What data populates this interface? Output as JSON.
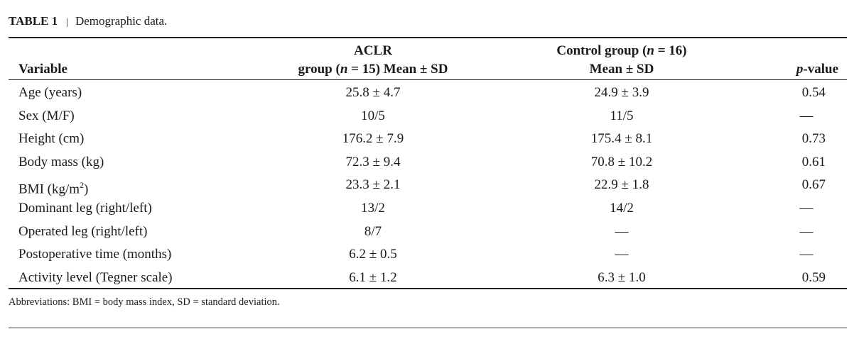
{
  "caption": {
    "label": "TABLE 1",
    "separator": "|",
    "title": "Demographic data."
  },
  "header": {
    "variable": "Variable",
    "aclr_line1": "ACLR",
    "aclr_line2_prefix": "group (",
    "aclr_n": "n",
    "aclr_line2_suffix": " = 15) Mean ± SD",
    "control_line1_prefix": "Control group (",
    "control_n": "n",
    "control_line1_suffix": " = 16)",
    "control_line2": "Mean ± SD",
    "p_italic": "p",
    "p_suffix": "-value"
  },
  "rows": [
    {
      "variable": "Age (years)",
      "aclr": "25.8 ± 4.7",
      "control": "24.9 ± 3.9",
      "p": "0.54"
    },
    {
      "variable": "Sex (M/F)",
      "aclr": "10/5",
      "control": "11/5",
      "p": "—"
    },
    {
      "variable": "Height (cm)",
      "aclr": "176.2 ± 7.9",
      "control": "175.4 ± 8.1",
      "p": "0.73"
    },
    {
      "variable": "Body mass (kg)",
      "aclr": "72.3 ± 9.4",
      "control": "70.8 ± 10.2",
      "p": "0.61"
    },
    {
      "variable_prefix": "BMI (kg/m",
      "variable_sup": "2",
      "variable_suffix": ")",
      "aclr": "23.3 ± 2.1",
      "control": "22.9 ± 1.8",
      "p": "0.67"
    },
    {
      "variable": "Dominant leg (right/left)",
      "aclr": "13/2",
      "control": "14/2",
      "p": "—"
    },
    {
      "variable": "Operated leg (right/left)",
      "aclr": "8/7",
      "control": "—",
      "p": "—"
    },
    {
      "variable": "Postoperative time (months)",
      "aclr": "6.2 ± 0.5",
      "control": "—",
      "p": "—"
    },
    {
      "variable": "Activity level (Tegner scale)",
      "aclr": "6.1 ± 1.2",
      "control": "6.3 ± 1.0",
      "p": "0.59"
    }
  ],
  "footnote": "Abbreviations: BMI = body mass index, SD = standard deviation."
}
